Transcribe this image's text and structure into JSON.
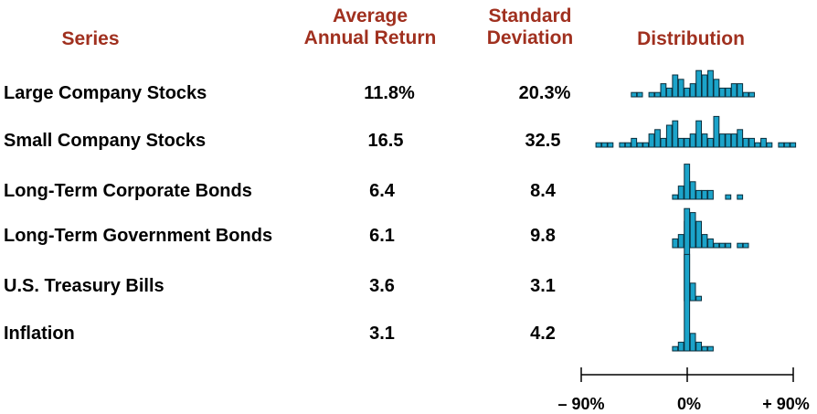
{
  "headers": {
    "series": "Series",
    "return_line1": "Average",
    "return_line2": "Annual Return",
    "stdev_line1": "Standard",
    "stdev_line2": "Deviation",
    "distribution": "Distribution"
  },
  "rows": [
    {
      "series": "Large Company Stocks",
      "return": "11.8%",
      "stdev": "20.3%"
    },
    {
      "series": "Small Company Stocks",
      "return": "16.5",
      "stdev": "32.5"
    },
    {
      "series": "Long-Term Corporate Bonds",
      "return": "6.4",
      "stdev": "8.4"
    },
    {
      "series": "Long-Term Government Bonds",
      "return": "6.1",
      "stdev": "9.8"
    },
    {
      "series": "U.S. Treasury Bills",
      "return": "3.6",
      "stdev": "3.1"
    },
    {
      "series": "Inflation",
      "return": "3.1",
      "stdev": "4.2"
    }
  ],
  "axis": {
    "min_label": "– 90%",
    "mid_label": "0%",
    "max_label": "+ 90%"
  },
  "colors": {
    "header": "#A0301F",
    "bar_fill": "#1BA3C9",
    "bar_stroke": "#0B2E3C"
  },
  "chart_data": {
    "type": "bar",
    "title": "Distribution",
    "x_unit": "%",
    "xlim": [
      -90,
      90
    ],
    "bin_width": 5,
    "series": [
      {
        "name": "Large Company Stocks",
        "x": [
          -45,
          -40,
          -30,
          -25,
          -20,
          -15,
          -10,
          -5,
          0,
          5,
          10,
          15,
          20,
          25,
          30,
          35,
          40,
          45,
          50,
          55
        ],
        "counts": [
          1,
          1,
          1,
          1,
          3,
          2,
          5,
          4,
          2,
          3,
          6,
          5,
          6,
          4,
          2,
          2,
          3,
          3,
          1,
          1
        ]
      },
      {
        "name": "Small Company Stocks",
        "x": [
          -75,
          -70,
          -65,
          -55,
          -50,
          -45,
          -40,
          -35,
          -30,
          -25,
          -20,
          -15,
          -10,
          -5,
          0,
          5,
          10,
          15,
          20,
          25,
          30,
          35,
          40,
          45,
          50,
          55,
          60,
          65,
          70,
          80,
          85,
          90
        ],
        "counts": [
          1,
          1,
          1,
          1,
          1,
          2,
          1,
          1,
          3,
          4,
          2,
          5,
          6,
          2,
          2,
          3,
          6,
          3,
          2,
          7,
          3,
          3,
          3,
          4,
          2,
          2,
          1,
          2,
          1,
          1,
          1,
          1
        ]
      },
      {
        "name": "Long-Term Corporate Bonds",
        "x": [
          -10,
          -5,
          0,
          5,
          10,
          15,
          20,
          35,
          45
        ],
        "counts": [
          1,
          3,
          8,
          4,
          2,
          2,
          2,
          1,
          1
        ]
      },
      {
        "name": "Long-Term Government Bonds",
        "x": [
          -10,
          -5,
          0,
          5,
          10,
          15,
          20,
          25,
          30,
          35,
          45,
          50
        ],
        "counts": [
          2,
          3,
          6,
          8,
          6,
          3,
          2,
          1,
          1,
          1,
          1,
          1
        ]
      },
      {
        "name": "U.S. Treasury Bills",
        "x": [
          0,
          5,
          10
        ],
        "counts": [
          21,
          4,
          1
        ]
      },
      {
        "name": "Inflation",
        "x": [
          -10,
          -5,
          0,
          5,
          10,
          15,
          20
        ],
        "counts": [
          1,
          2,
          22,
          4,
          2,
          1,
          1
        ]
      }
    ]
  }
}
